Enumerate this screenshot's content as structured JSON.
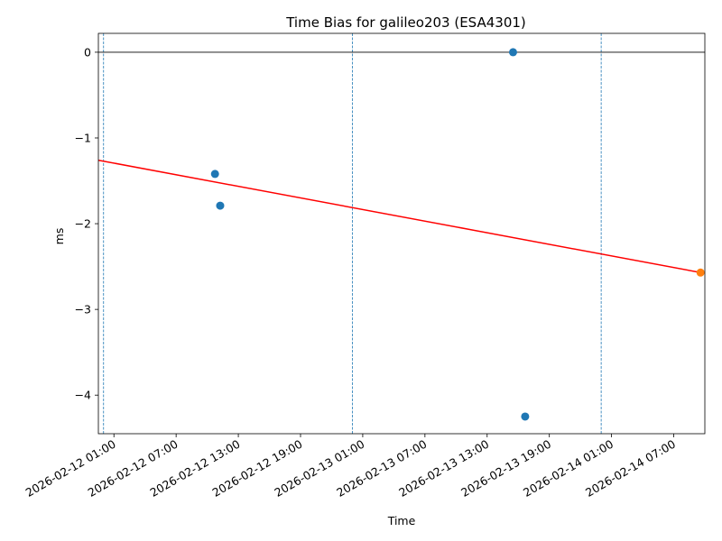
{
  "chart_data": {
    "type": "scatter",
    "title": "Time Bias for galileo203 (ESA4301)",
    "xlabel": "Time",
    "ylabel": "ms",
    "x_type": "datetime",
    "xlim": [
      "2026-02-11 23:30",
      "2026-02-14 10:00"
    ],
    "ylim": [
      -4.45,
      0.22
    ],
    "x_ticks": [
      "2026-02-12 01:00",
      "2026-02-12 07:00",
      "2026-02-12 13:00",
      "2026-02-12 19:00",
      "2026-02-13 01:00",
      "2026-02-13 07:00",
      "2026-02-13 13:00",
      "2026-02-13 19:00",
      "2026-02-14 01:00",
      "2026-02-14 07:00"
    ],
    "y_ticks": [
      0,
      -1,
      -2,
      -3,
      -4
    ],
    "y_tick_labels": [
      "0",
      "−1",
      "−2",
      "−3",
      "−4"
    ],
    "grid": false,
    "series": [
      {
        "color": "#1f77b4",
        "points": [
          {
            "x": "2026-02-12 10:45",
            "y": -1.42
          },
          {
            "x": "2026-02-12 11:15",
            "y": -1.79
          },
          {
            "x": "2026-02-13 15:30",
            "y": 0.0
          },
          {
            "x": "2026-02-13 16:40",
            "y": -4.25
          }
        ]
      },
      {
        "color": "#ff7f0e",
        "points": [
          {
            "x": "2026-02-14 09:35",
            "y": -2.57
          }
        ]
      }
    ],
    "trend_line": {
      "color": "#ff0000",
      "from": {
        "x": "2026-02-11 23:30",
        "y": -1.26
      },
      "to": {
        "x": "2026-02-14 09:35",
        "y": -2.57
      }
    },
    "reference_hline": {
      "y": 0,
      "color": "#000000"
    },
    "vertical_lines": {
      "color": "#1f77b4",
      "style": "dashed",
      "x": [
        "2026-02-12 00:00",
        "2026-02-13 00:00",
        "2026-02-14 00:00"
      ]
    }
  }
}
